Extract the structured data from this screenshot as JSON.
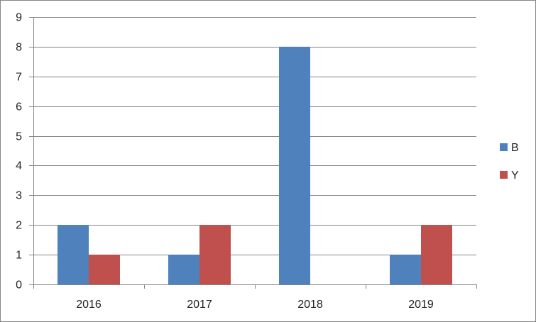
{
  "chart_data": {
    "type": "bar",
    "categories": [
      "2016",
      "2017",
      "2018",
      "2019"
    ],
    "series": [
      {
        "name": "B",
        "values": [
          2,
          1,
          8,
          1
        ],
        "color": "#4F81BD"
      },
      {
        "name": "Y",
        "values": [
          1,
          2,
          0,
          2
        ],
        "color": "#C0504D"
      }
    ],
    "ylim": [
      0,
      9
    ],
    "yticks": [
      "0",
      "1",
      "2",
      "3",
      "4",
      "5",
      "6",
      "7",
      "8",
      "9"
    ],
    "grid": true,
    "legend_position": "right",
    "title": "",
    "xlabel": "",
    "ylabel": ""
  }
}
